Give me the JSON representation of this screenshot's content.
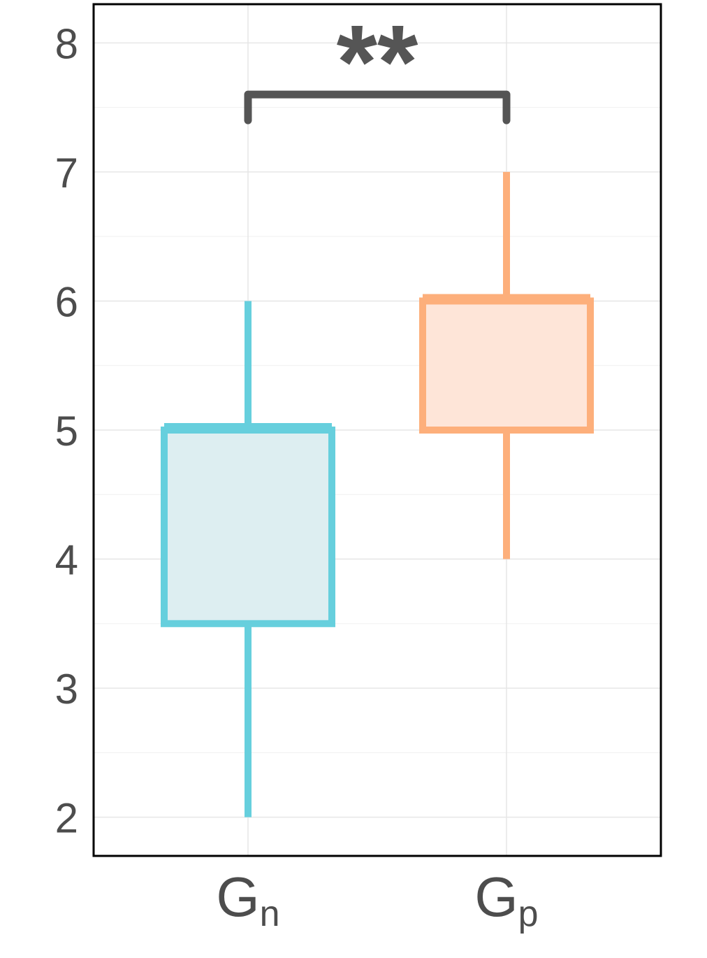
{
  "chart_data": {
    "type": "box",
    "title": "",
    "xlabel": "",
    "ylabel": "",
    "ylim": [
      1.7,
      8.3
    ],
    "yticks": [
      2,
      3,
      4,
      5,
      6,
      7,
      8
    ],
    "grid": true,
    "legend": "none",
    "groups": [
      {
        "name": "G",
        "subscript": "n",
        "min": 2,
        "q1": 3.5,
        "median": 5,
        "q3": 5,
        "max": 6,
        "color": "#66CFDD",
        "fill": "#DDEEF1"
      },
      {
        "name": "G",
        "subscript": "p",
        "min": 4,
        "q1": 5,
        "median": 6,
        "q3": 6,
        "max": 7,
        "color": "#FDAF7B",
        "fill": "#FEE5D8"
      }
    ],
    "significance": {
      "label": "**",
      "from_group": 0,
      "to_group": 1,
      "y": 7.6,
      "tip_y": 7.4,
      "color": "#555555"
    }
  }
}
